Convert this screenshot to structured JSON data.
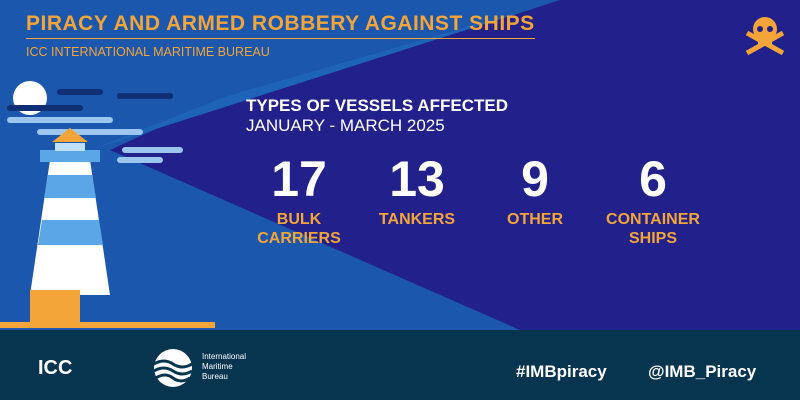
{
  "header": {
    "title": "PIRACY AND ARMED ROBBERY AGAINST SHIPS",
    "subtitle": "ICC INTERNATIONAL MARITIME BUREAU"
  },
  "panel": {
    "title": "TYPES OF VESSELS AFFECTED",
    "period": "JANUARY - MARCH 2025",
    "stats": [
      {
        "value": 17,
        "label": "BULK CARRIERS"
      },
      {
        "value": 13,
        "label": "TANKERS"
      },
      {
        "value": 9,
        "label": "OTHER"
      },
      {
        "value": 6,
        "label": "CONTAINER SHIPS"
      }
    ]
  },
  "footer": {
    "logo_icc": "ICC",
    "logo_imb": "International Maritime Bureau",
    "hashtag": "#IMBpiracy",
    "handle": "@IMB_Piracy"
  }
}
